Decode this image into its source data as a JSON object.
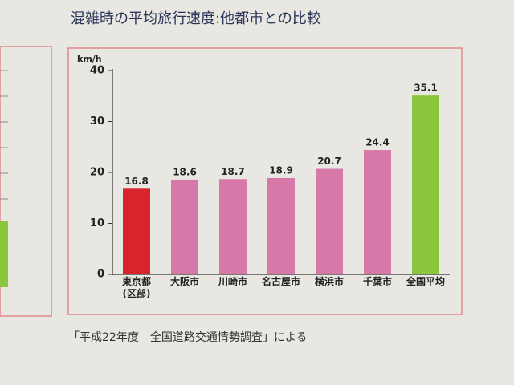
{
  "chart_data": {
    "type": "bar",
    "title": "混雑時の平均旅行速度:他都市との比較",
    "source": "「平成22年度　全国道路交通情勢調査」による",
    "y_label": "km/h",
    "categories": [
      "東京都\n(区部)",
      "大阪市",
      "川崎市",
      "名古屋市",
      "横浜市",
      "千葉市",
      "全国平均"
    ],
    "values": [
      16.8,
      18.6,
      18.7,
      18.9,
      20.7,
      24.4,
      35.1
    ],
    "colors": [
      "#d8242c",
      "#d679a9",
      "#d679a9",
      "#d679a9",
      "#d679a9",
      "#d679a9",
      "#8cc63f"
    ],
    "ylim": [
      0,
      40
    ],
    "yticks": [
      0,
      10,
      20,
      30,
      40
    ],
    "grid": false
  }
}
